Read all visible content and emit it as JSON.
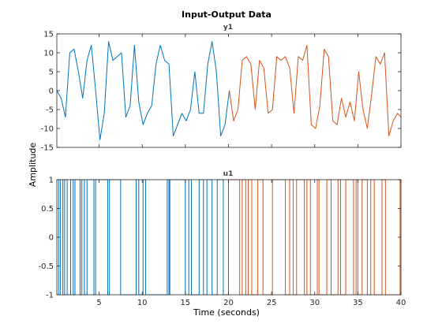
{
  "chart_data": {
    "type": "line",
    "title": "Input-Output Data",
    "xlabel": "Time (seconds)",
    "ylabel": "Amplitude",
    "xlim": [
      0.1,
      40
    ],
    "x_ticks": [
      5,
      10,
      15,
      20,
      25,
      30,
      35,
      40
    ],
    "grid": false,
    "colors": {
      "segment1": "#0072BD",
      "segment2": "#D95319"
    },
    "panels": [
      {
        "subtitle": "y1",
        "ylim": [
          -15,
          15
        ],
        "y_ticks": [
          15,
          10,
          5,
          0,
          -5,
          -10,
          -15
        ],
        "series": [
          {
            "x": [
              0.1,
              0.6,
              1.1,
              1.6,
              2.1,
              2.6,
              3.1,
              3.6,
              4.1,
              4.6,
              5.1,
              5.6,
              6.1,
              6.6,
              7.1,
              7.6,
              8.1,
              8.6,
              9.1,
              9.6,
              10.1,
              10.6,
              11.1,
              11.6,
              12.1,
              12.6,
              13.1,
              13.6,
              14.1,
              14.6,
              15.1,
              15.6,
              16.1,
              16.6,
              17.1,
              17.6,
              18.1,
              18.6,
              19.1,
              19.6,
              20.1
            ],
            "y": [
              0,
              -2,
              -7,
              10,
              11,
              5,
              -2,
              8,
              12,
              0,
              -13,
              -6,
              13,
              8,
              9,
              10,
              -7,
              -4,
              12,
              -3,
              -9,
              -6,
              -4,
              7,
              12,
              8,
              7,
              -12,
              -9,
              -6,
              -8,
              -5,
              5,
              -6,
              -6,
              7,
              13,
              5,
              -12,
              -9,
              0
            ]
          },
          {
            "x": [
              20.1,
              20.6,
              21.1,
              21.6,
              22.1,
              22.6,
              23.1,
              23.6,
              24.1,
              24.6,
              25.1,
              25.6,
              26.1,
              26.6,
              27.1,
              27.6,
              28.1,
              28.6,
              29.1,
              29.6,
              30.1,
              30.6,
              31.1,
              31.6,
              32.1,
              32.6,
              33.1,
              33.6,
              34.1,
              34.6,
              35.1,
              35.6,
              36.1,
              36.6,
              37.1,
              37.6,
              38.1,
              38.6,
              39.1,
              39.6,
              40.0
            ],
            "y": [
              0,
              -8,
              -5,
              8,
              9,
              7,
              -5,
              8,
              6,
              -6,
              -5,
              9,
              8,
              9,
              6,
              -6,
              9,
              8,
              12,
              -9,
              -10,
              -4,
              11,
              9,
              -8,
              -9,
              -2,
              -7,
              -3,
              -8,
              5,
              -5,
              -10,
              -1,
              9,
              7,
              10,
              -12,
              -8,
              -6,
              -7
            ]
          }
        ]
      },
      {
        "subtitle": "u1",
        "ylim": [
          -1,
          1
        ],
        "y_ticks": [
          1,
          0.5,
          0,
          -0.5,
          -1
        ],
        "series": [
          {
            "x": [
              0.1,
              0.3,
              0.5,
              0.8,
              1.0,
              1.3,
              1.7,
              2.0,
              2.2,
              2.8,
              3.0,
              3.3,
              3.6,
              4.4,
              4.6,
              6.0,
              6.2,
              7.5,
              9.3,
              9.6,
              10.1,
              10.4,
              12.9,
              13.1,
              13.2,
              15.0,
              15.4,
              15.7,
              16.6,
              17.1,
              17.5,
              18.1,
              18.7,
              19.4,
              20.0
            ],
            "y": [
              1,
              -1,
              1,
              -1,
              1,
              -1,
              1,
              -1,
              1,
              -1,
              1,
              -1,
              1,
              -1,
              1,
              -1,
              1,
              -1,
              1,
              -1,
              1,
              -1,
              1,
              -1,
              1,
              -1,
              1,
              -1,
              1,
              -1,
              1,
              -1,
              1,
              -1,
              1
            ]
          },
          {
            "x": [
              20.0,
              20.8,
              21.3,
              21.6,
              22.0,
              22.3,
              22.7,
              23.4,
              24.0,
              25.1,
              26.6,
              27.1,
              27.5,
              27.9,
              28.8,
              29.1,
              29.5,
              30.3,
              30.5,
              31.4,
              31.9,
              32.7,
              33.0,
              33.6,
              34.5,
              34.8,
              35.0,
              35.5,
              36.1,
              36.5,
              36.9,
              37.8,
              38.2,
              39.9
            ],
            "y": [
              1,
              1,
              -1,
              1,
              -1,
              1,
              -1,
              1,
              -1,
              1,
              -1,
              1,
              -1,
              1,
              -1,
              1,
              -1,
              1,
              -1,
              1,
              -1,
              1,
              -1,
              1,
              -1,
              1,
              -1,
              1,
              -1,
              1,
              -1,
              1,
              -1,
              1
            ]
          }
        ]
      }
    ]
  }
}
